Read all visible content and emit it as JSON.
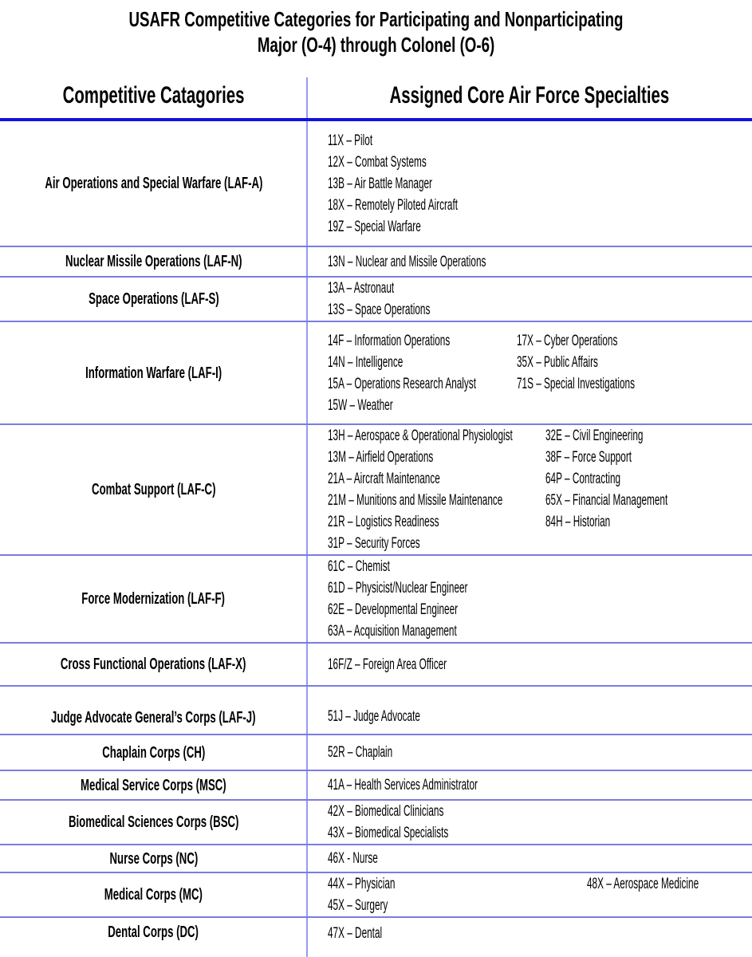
{
  "title": {
    "line1": "USAFR Competitive Categories for Participating and Nonparticipating",
    "line2": "Major (O-4) through Colonel (O-6)"
  },
  "table": {
    "headers": {
      "left": "Competitive Catagories",
      "right": "Assigned Core Air Force Specialties"
    },
    "rows": [
      {
        "key": "air-ops",
        "category": "Air Operations and Special Warfare (LAF-A)",
        "col1": [
          "11X – Pilot",
          "12X – Combat Systems",
          "13B – Air Battle Manager",
          "18X – Remotely Piloted Aircraft",
          "19Z – Special Warfare"
        ],
        "col2": []
      },
      {
        "key": "nuclear",
        "category": "Nuclear Missile Operations (LAF-N)",
        "col1": [
          "13N – Nuclear and Missile Operations"
        ],
        "col2": []
      },
      {
        "key": "space",
        "category": "Space Operations (LAF-S)",
        "col1": [
          "13A – Astronaut",
          "13S – Space Operations"
        ],
        "col2": []
      },
      {
        "key": "info-warfare",
        "category": "Information Warfare (LAF-I)",
        "col1": [
          "14F – Information Operations",
          "14N – Intelligence",
          "15A – Operations Research Analyst",
          "15W – Weather"
        ],
        "col2": [
          "17X – Cyber Operations",
          "35X – Public Affairs",
          "71S – Special Investigations"
        ]
      },
      {
        "key": "combat-support",
        "category": "Combat Support (LAF-C)",
        "col1": [
          "13H – Aerospace & Operational Physiologist",
          "13M – Airfield Operations",
          "21A – Aircraft Maintenance",
          "21M – Munitions and Missile Maintenance",
          "21R – Logistics Readiness",
          "31P – Security Forces"
        ],
        "col2": [
          "32E – Civil Engineering",
          "38F – Force Support",
          "64P – Contracting",
          "65X – Financial Management",
          "84H – Historian"
        ]
      },
      {
        "key": "force-mod",
        "category": "Force Modernization (LAF-F)",
        "col1": [
          "61C – Chemist",
          "61D – Physicist/Nuclear Engineer",
          "62E – Developmental Engineer",
          "63A – Acquisition Management"
        ],
        "col2": []
      },
      {
        "key": "cross-functional",
        "category": "Cross Functional Operations (LAF-X)",
        "col1": [
          "16F/Z – Foreign Area Officer"
        ],
        "col2": []
      },
      {
        "key": "judge-advocate",
        "category": "Judge Advocate General’s Corps (LAF-J)",
        "col1": [
          "51J – Judge Advocate"
        ],
        "col2": []
      },
      {
        "key": "chaplain",
        "category": "Chaplain Corps (CH)",
        "col1": [
          "52R – Chaplain"
        ],
        "col2": []
      },
      {
        "key": "medical-service",
        "category": "Medical Service Corps (MSC)",
        "col1": [
          "41A – Health Services Administrator"
        ],
        "col2": []
      },
      {
        "key": "biomedical",
        "category": "Biomedical Sciences Corps (BSC)",
        "col1": [
          "42X – Biomedical Clinicians",
          "43X – Biomedical Specialists"
        ],
        "col2": []
      },
      {
        "key": "nurse",
        "category": "Nurse Corps (NC)",
        "col1": [
          "46X - Nurse"
        ],
        "col2": []
      },
      {
        "key": "medical-corps",
        "category": "Medical Corps (MC)",
        "split": "wide",
        "col1": [
          "44X – Physician",
          "45X – Surgery"
        ],
        "col2": [
          "48X – Aerospace Medicine"
        ]
      },
      {
        "key": "dental",
        "category": "Dental Corps (DC)",
        "col1": [
          "47X – Dental"
        ],
        "col2": []
      }
    ]
  },
  "colors": {
    "header_rule": "#1212dd",
    "bottom_rule": "#0b0bdd",
    "row_divider": "#7b7be4",
    "column_divider": "#9a9af0",
    "text": "#000000",
    "background": "#ffffff"
  }
}
